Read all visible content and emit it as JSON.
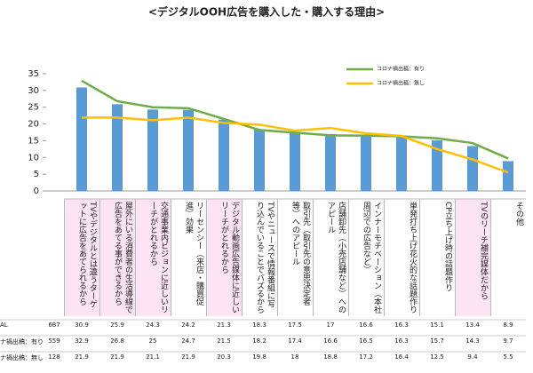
{
  "chart_data": {
    "type": "bar",
    "title": "<デジタルOOH広告を購入した・購入する理由>",
    "categories": [
      "TVやデジタルとは違うターゲットに広告をあてられるから",
      "屋外にいる消費者の生活導線で広告をあてる事ができるから",
      "交通事業内ビジョンに近しいリーチがとれるから",
      "リーセンシー（来店・購買促進）効果",
      "デジタル動画広告媒体に近しいリーチがとれるから",
      "TVやニュースで情報番組に写り込んでいることでバズるから",
      "取引先（取引先の意思決定者等）へのアピール",
      "店舗卸先（小売店舗など）へのアピール",
      "インナーモチベーション（本社周辺での広告など）",
      "単発打ち上げ花火的な話題作り",
      "CP立ち上げ時の話題作り",
      "TVのリーチ補完媒体だから",
      "その他"
    ],
    "series": [
      {
        "name": "AL",
        "n": 687,
        "color": "#5b9bd5",
        "kind": "bar",
        "values": [
          30.9,
          25.9,
          24.3,
          24.2,
          21.3,
          18.3,
          17.5,
          17.0,
          16.6,
          16.3,
          15.1,
          13.4,
          8.9
        ]
      },
      {
        "name": "ナ禍出稿：有り",
        "legend": "コロナ禍出稿：有り",
        "n": 559,
        "color": "#70ad47",
        "kind": "line",
        "values": [
          32.9,
          26.8,
          25.0,
          24.7,
          21.5,
          18.2,
          17.4,
          16.6,
          16.5,
          16.3,
          15.7,
          14.3,
          9.7
        ]
      },
      {
        "name": "ナ禍出稿：無し",
        "legend": "コロナ禍出稿：無し",
        "n": 128,
        "color": "#ffc000",
        "kind": "line",
        "values": [
          21.9,
          21.9,
          21.1,
          21.9,
          20.3,
          19.8,
          18.0,
          18.8,
          17.2,
          16.4,
          12.5,
          9.4,
          5.5
        ]
      }
    ],
    "ylim": [
      0,
      35
    ],
    "yticks": [
      0,
      5,
      10,
      15,
      20,
      25,
      30,
      35
    ],
    "grid": false
  }
}
